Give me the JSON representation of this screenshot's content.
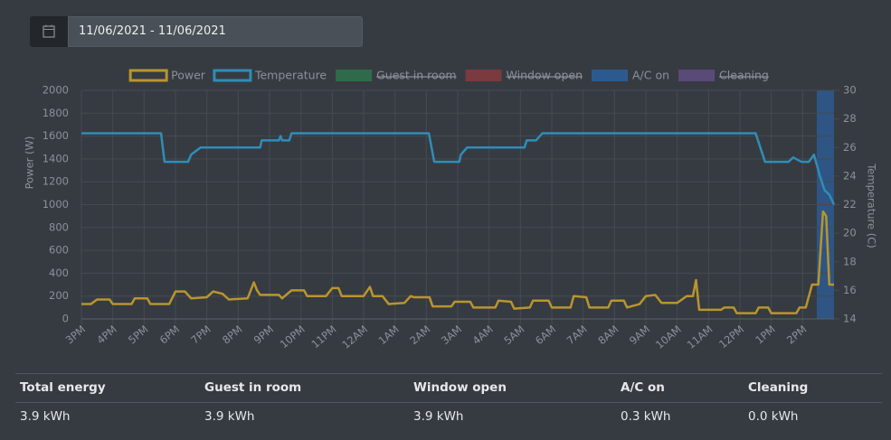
{
  "date_range": "11/06/2021 - 11/06/2021",
  "chart_data": {
    "type": "line",
    "ylabel": "Power (W)",
    "y2label": "Temperature (C)",
    "xlim": [
      0,
      24
    ],
    "ylim": [
      0,
      2000
    ],
    "y2lim": [
      14,
      30
    ],
    "xticks": [
      {
        "value": 0,
        "label": "3PM"
      },
      {
        "value": 1,
        "label": "4PM"
      },
      {
        "value": 2,
        "label": "5PM"
      },
      {
        "value": 3,
        "label": "6PM"
      },
      {
        "value": 4,
        "label": "7PM"
      },
      {
        "value": 5,
        "label": "8PM"
      },
      {
        "value": 6,
        "label": "9PM"
      },
      {
        "value": 7,
        "label": "10PM"
      },
      {
        "value": 8,
        "label": "11PM"
      },
      {
        "value": 9,
        "label": "12AM"
      },
      {
        "value": 10,
        "label": "1AM"
      },
      {
        "value": 11,
        "label": "2AM"
      },
      {
        "value": 12,
        "label": "3AM"
      },
      {
        "value": 13,
        "label": "4AM"
      },
      {
        "value": 14,
        "label": "5AM"
      },
      {
        "value": 15,
        "label": "6AM"
      },
      {
        "value": 16,
        "label": "7AM"
      },
      {
        "value": 17,
        "label": "8AM"
      },
      {
        "value": 18,
        "label": "9AM"
      },
      {
        "value": 19,
        "label": "10AM"
      },
      {
        "value": 20,
        "label": "11AM"
      },
      {
        "value": 21,
        "label": "12PM"
      },
      {
        "value": 22,
        "label": "1PM"
      },
      {
        "value": 23,
        "label": "2PM"
      }
    ],
    "yticks": [
      0,
      200,
      400,
      600,
      800,
      1000,
      1200,
      1400,
      1600,
      1800,
      2000
    ],
    "y2ticks": [
      14,
      16,
      18,
      20,
      22,
      24,
      26,
      28,
      30
    ],
    "grid": true,
    "series": [
      {
        "name": "Power",
        "color": "#b9952c",
        "kind": "line",
        "hidden": false,
        "x": [
          0,
          0.3,
          0.5,
          0.9,
          1.0,
          1.6,
          1.7,
          2.1,
          2.2,
          2.8,
          3.0,
          3.3,
          3.5,
          4.0,
          4.2,
          4.5,
          4.7,
          5.3,
          5.5,
          5.6,
          5.7,
          6.3,
          6.4,
          6.7,
          7.1,
          7.2,
          7.8,
          8.0,
          8.2,
          8.3,
          8.8,
          9.0,
          9.2,
          9.3,
          9.6,
          9.8,
          10.3,
          10.5,
          10.6,
          11.1,
          11.2,
          11.8,
          11.9,
          12.4,
          12.5,
          13.2,
          13.3,
          13.7,
          13.8,
          14.3,
          14.4,
          14.9,
          15.0,
          15.6,
          15.7,
          16.1,
          16.2,
          16.8,
          16.9,
          17.3,
          17.4,
          17.8,
          18.0,
          18.3,
          18.5,
          19.0,
          19.3,
          19.5,
          19.6,
          19.7,
          20.4,
          20.5,
          20.8,
          20.9,
          21.5,
          21.6,
          21.9,
          22.0,
          22.8,
          22.9,
          23.1,
          23.3,
          23.5,
          23.65,
          23.75,
          23.85,
          24
        ],
        "values": [
          130,
          130,
          170,
          170,
          130,
          130,
          180,
          180,
          130,
          130,
          240,
          240,
          180,
          190,
          240,
          220,
          170,
          180,
          320,
          250,
          210,
          210,
          180,
          250,
          250,
          200,
          200,
          270,
          270,
          200,
          200,
          200,
          280,
          200,
          200,
          130,
          140,
          200,
          190,
          190,
          110,
          110,
          150,
          150,
          100,
          100,
          160,
          150,
          90,
          100,
          160,
          160,
          100,
          100,
          200,
          190,
          100,
          100,
          160,
          160,
          100,
          130,
          200,
          210,
          140,
          140,
          200,
          200,
          340,
          80,
          80,
          100,
          100,
          50,
          50,
          100,
          100,
          50,
          50,
          100,
          100,
          300,
          300,
          940,
          900,
          300,
          300
        ]
      },
      {
        "name": "Temperature",
        "color": "#2f8db6",
        "kind": "line",
        "axis": "y2",
        "hidden": false,
        "x": [
          0,
          2.54,
          2.65,
          3.4,
          3.5,
          3.8,
          5.7,
          5.75,
          6.3,
          6.35,
          6.4,
          6.63,
          6.7,
          11.08,
          11.25,
          12.05,
          12.1,
          12.3,
          14.13,
          14.2,
          14.5,
          14.7,
          21.5,
          21.8,
          22.55,
          22.7,
          22.96,
          23.2,
          23.36,
          23.55,
          23.7,
          23.85,
          24
        ],
        "values": [
          27,
          27,
          25,
          25,
          25.5,
          26,
          26,
          26.5,
          26.5,
          26.8,
          26.5,
          26.5,
          27,
          27,
          25,
          25,
          25.5,
          26,
          26,
          26.5,
          26.5,
          27,
          27,
          25,
          25,
          25.3,
          25,
          25,
          25.5,
          24,
          23,
          22.7,
          22
        ]
      },
      {
        "name": "Guest in room",
        "color": "#2f6b4a",
        "kind": "band",
        "hidden": true,
        "ranges": []
      },
      {
        "name": "Window open",
        "color": "#7a3a3e",
        "kind": "band",
        "hidden": true,
        "ranges": []
      },
      {
        "name": "A/C on",
        "color": "#2d5a8e",
        "kind": "band",
        "hidden": false,
        "ranges": [
          [
            23.45,
            24
          ]
        ]
      },
      {
        "name": "Cleaning",
        "color": "#5a4a78",
        "kind": "band",
        "hidden": true,
        "ranges": []
      }
    ]
  },
  "stats": {
    "headers": [
      "Total energy",
      "Guest in room",
      "Window open",
      "A/C on",
      "Cleaning"
    ],
    "values": [
      "3.9 kWh",
      "3.9 kWh",
      "3.9 kWh",
      "0.3 kWh",
      "0.0 kWh"
    ]
  }
}
